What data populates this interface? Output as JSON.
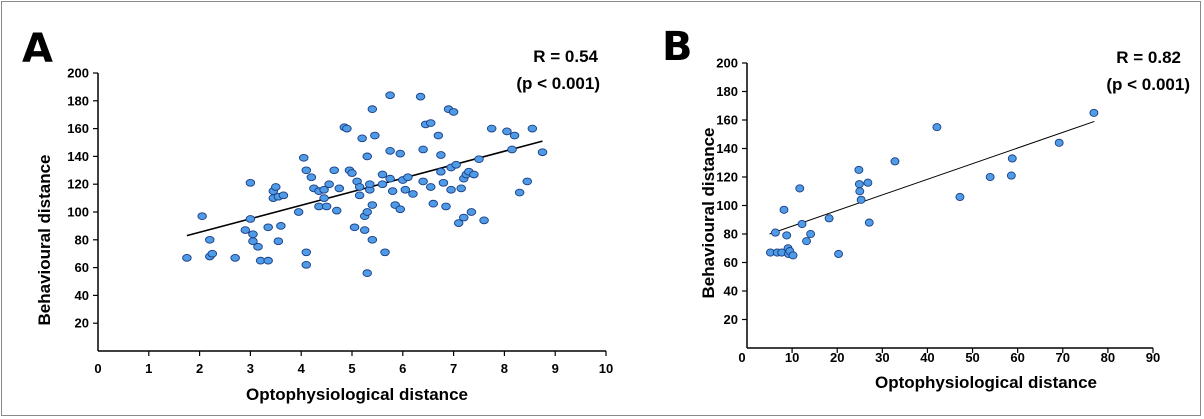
{
  "chart_data": [
    {
      "type": "scatter",
      "panel_label": "A",
      "xlabel": "Optophysiological distance",
      "ylabel": "Behavioural distance",
      "xlim": [
        0,
        10
      ],
      "ylim": [
        0,
        200
      ],
      "x_ticks": [
        1,
        2,
        3,
        4,
        5,
        6,
        7,
        8,
        9,
        10
      ],
      "y_ticks": [
        20,
        40,
        60,
        80,
        100,
        120,
        140,
        160,
        180,
        200
      ],
      "origin_label": "0",
      "grid": false,
      "stat_lines": [
        "R = 0.54",
        "(p < 0.001)"
      ],
      "trendline": {
        "x": [
          1.75,
          8.75
        ],
        "y": [
          83,
          151
        ]
      },
      "points": [
        [
          1.75,
          67
        ],
        [
          2.05,
          97
        ],
        [
          2.2,
          80
        ],
        [
          2.2,
          68
        ],
        [
          2.25,
          70
        ],
        [
          2.7,
          67
        ],
        [
          2.9,
          87
        ],
        [
          3.0,
          121
        ],
        [
          3.0,
          95
        ],
        [
          3.05,
          84
        ],
        [
          3.05,
          79
        ],
        [
          3.15,
          75
        ],
        [
          3.2,
          65
        ],
        [
          3.35,
          65
        ],
        [
          3.35,
          89
        ],
        [
          3.45,
          115
        ],
        [
          3.45,
          110
        ],
        [
          3.5,
          118
        ],
        [
          3.55,
          111
        ],
        [
          3.55,
          79
        ],
        [
          3.65,
          112
        ],
        [
          3.6,
          90
        ],
        [
          3.95,
          100
        ],
        [
          4.05,
          139
        ],
        [
          4.1,
          130
        ],
        [
          4.1,
          71
        ],
        [
          4.1,
          62
        ],
        [
          4.2,
          125
        ],
        [
          4.25,
          117
        ],
        [
          4.35,
          104
        ],
        [
          4.35,
          115
        ],
        [
          4.45,
          116
        ],
        [
          4.45,
          110
        ],
        [
          4.5,
          104
        ],
        [
          4.55,
          120
        ],
        [
          4.65,
          130
        ],
        [
          4.7,
          101
        ],
        [
          4.75,
          117
        ],
        [
          4.85,
          161
        ],
        [
          4.9,
          160
        ],
        [
          4.95,
          130
        ],
        [
          5.0,
          128
        ],
        [
          5.05,
          89
        ],
        [
          5.1,
          122
        ],
        [
          5.15,
          118
        ],
        [
          5.15,
          112
        ],
        [
          5.2,
          153
        ],
        [
          5.25,
          87
        ],
        [
          5.25,
          97
        ],
        [
          5.3,
          100
        ],
        [
          5.3,
          140
        ],
        [
          5.3,
          56
        ],
        [
          5.35,
          116
        ],
        [
          5.35,
          120
        ],
        [
          5.4,
          80
        ],
        [
          5.4,
          105
        ],
        [
          5.4,
          174
        ],
        [
          5.45,
          155
        ],
        [
          5.6,
          127
        ],
        [
          5.6,
          120
        ],
        [
          5.65,
          71
        ],
        [
          5.75,
          184
        ],
        [
          5.75,
          144
        ],
        [
          5.75,
          124
        ],
        [
          5.8,
          115
        ],
        [
          5.85,
          105
        ],
        [
          5.95,
          102
        ],
        [
          5.95,
          142
        ],
        [
          6.0,
          123
        ],
        [
          6.05,
          116
        ],
        [
          6.1,
          125
        ],
        [
          6.2,
          113
        ],
        [
          6.35,
          183
        ],
        [
          6.4,
          145
        ],
        [
          6.4,
          122
        ],
        [
          6.45,
          163
        ],
        [
          6.55,
          164
        ],
        [
          6.55,
          118
        ],
        [
          6.6,
          106
        ],
        [
          6.7,
          155
        ],
        [
          6.75,
          141
        ],
        [
          6.75,
          129
        ],
        [
          6.8,
          121
        ],
        [
          6.85,
          104
        ],
        [
          6.9,
          174
        ],
        [
          6.95,
          116
        ],
        [
          6.95,
          132
        ],
        [
          7.0,
          172
        ],
        [
          7.05,
          134
        ],
        [
          7.1,
          92
        ],
        [
          7.15,
          117
        ],
        [
          7.2,
          96
        ],
        [
          7.2,
          124
        ],
        [
          7.25,
          127
        ],
        [
          7.3,
          129
        ],
        [
          7.35,
          100
        ],
        [
          7.4,
          127
        ],
        [
          7.5,
          138
        ],
        [
          7.6,
          94
        ],
        [
          7.75,
          160
        ],
        [
          8.05,
          158
        ],
        [
          8.15,
          145
        ],
        [
          8.2,
          155
        ],
        [
          8.3,
          114
        ],
        [
          8.45,
          122
        ],
        [
          8.55,
          160
        ],
        [
          8.75,
          143
        ]
      ]
    },
    {
      "type": "scatter",
      "panel_label": "B",
      "xlabel": "Optophysiological distance",
      "ylabel": "Behavioural distance",
      "xlim": [
        0,
        90
      ],
      "ylim": [
        0,
        200
      ],
      "x_ticks": [
        10,
        20,
        30,
        40,
        50,
        60,
        70,
        80,
        90
      ],
      "y_ticks": [
        20,
        40,
        60,
        80,
        100,
        120,
        140,
        160,
        180,
        200
      ],
      "origin_label": "0",
      "grid": false,
      "stat_lines": [
        "R = 0.82",
        "(p < 0.001)"
      ],
      "trendline": {
        "x": [
          5,
          77
        ],
        "y": [
          80,
          159
        ]
      },
      "points": [
        [
          5.2,
          67
        ],
        [
          6.3,
          81
        ],
        [
          6.7,
          67
        ],
        [
          7.7,
          67
        ],
        [
          8.2,
          97
        ],
        [
          8.8,
          79
        ],
        [
          9.1,
          70
        ],
        [
          9.2,
          66
        ],
        [
          9.5,
          68
        ],
        [
          10.2,
          65
        ],
        [
          11.7,
          112
        ],
        [
          12.2,
          87
        ],
        [
          13.2,
          75
        ],
        [
          14.1,
          80
        ],
        [
          18.2,
          91
        ],
        [
          20.3,
          66
        ],
        [
          24.8,
          125
        ],
        [
          24.9,
          115
        ],
        [
          25.0,
          110
        ],
        [
          25.3,
          104
        ],
        [
          26.8,
          116
        ],
        [
          27.1,
          88
        ],
        [
          32.8,
          131
        ],
        [
          42.1,
          155
        ],
        [
          47.2,
          106
        ],
        [
          53.9,
          120
        ],
        [
          58.6,
          121
        ],
        [
          58.8,
          133
        ],
        [
          69.2,
          144
        ],
        [
          76.9,
          165
        ]
      ]
    }
  ]
}
